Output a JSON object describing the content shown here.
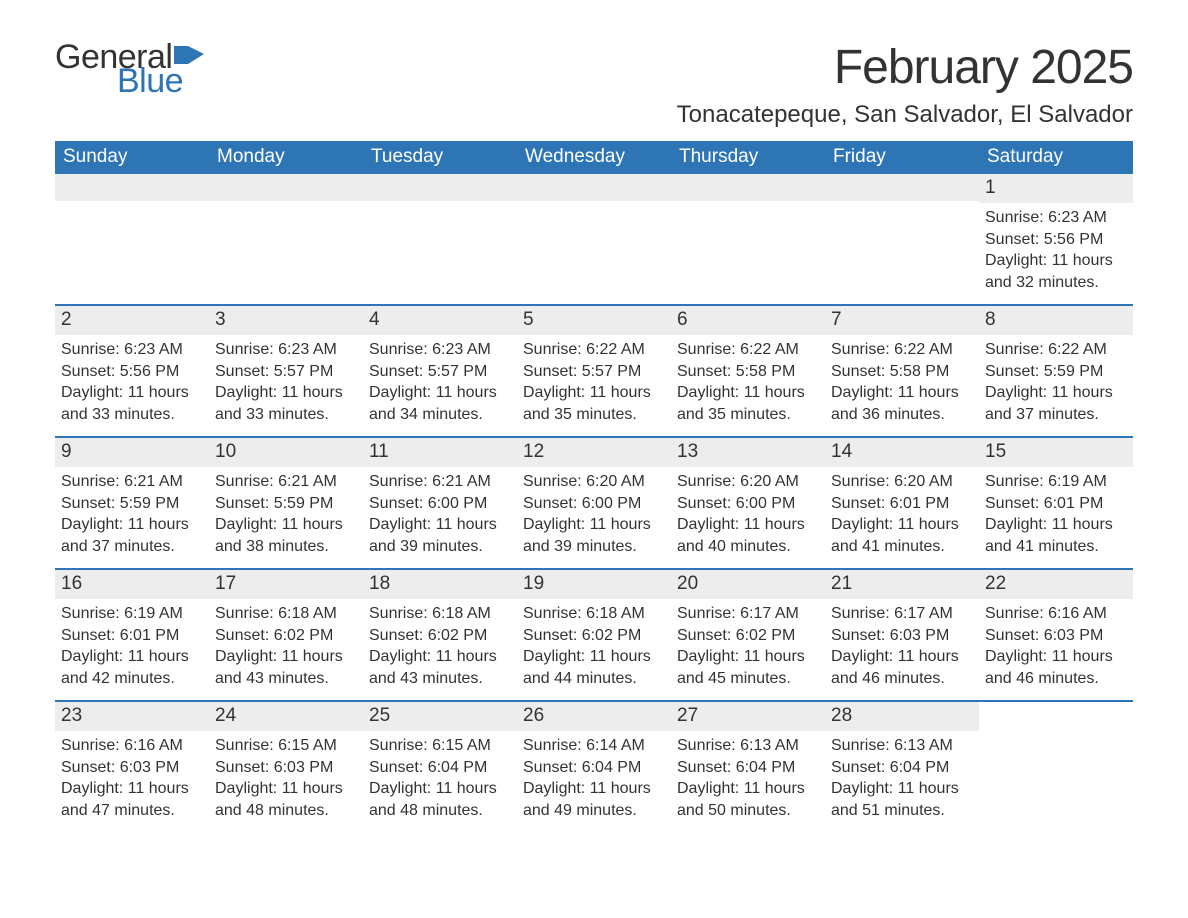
{
  "brand": {
    "word1": "General",
    "word2": "Blue",
    "flag_color": "#2e75b6"
  },
  "colors": {
    "header_bg": "#2e75b6",
    "header_text": "#ffffff",
    "daynum_bg": "#ededed",
    "text": "#333333",
    "rule": "#2e75b6",
    "page_bg": "#ffffff"
  },
  "title": "February 2025",
  "location": "Tonacatepeque, San Salvador, El Salvador",
  "dow": [
    "Sunday",
    "Monday",
    "Tuesday",
    "Wednesday",
    "Thursday",
    "Friday",
    "Saturday"
  ],
  "weeks": [
    [
      {
        "n": "",
        "sunrise": "",
        "sunset": "",
        "daylight": ""
      },
      {
        "n": "",
        "sunrise": "",
        "sunset": "",
        "daylight": ""
      },
      {
        "n": "",
        "sunrise": "",
        "sunset": "",
        "daylight": ""
      },
      {
        "n": "",
        "sunrise": "",
        "sunset": "",
        "daylight": ""
      },
      {
        "n": "",
        "sunrise": "",
        "sunset": "",
        "daylight": ""
      },
      {
        "n": "",
        "sunrise": "",
        "sunset": "",
        "daylight": ""
      },
      {
        "n": "1",
        "sunrise": "Sunrise: 6:23 AM",
        "sunset": "Sunset: 5:56 PM",
        "daylight": "Daylight: 11 hours and 32 minutes."
      }
    ],
    [
      {
        "n": "2",
        "sunrise": "Sunrise: 6:23 AM",
        "sunset": "Sunset: 5:56 PM",
        "daylight": "Daylight: 11 hours and 33 minutes."
      },
      {
        "n": "3",
        "sunrise": "Sunrise: 6:23 AM",
        "sunset": "Sunset: 5:57 PM",
        "daylight": "Daylight: 11 hours and 33 minutes."
      },
      {
        "n": "4",
        "sunrise": "Sunrise: 6:23 AM",
        "sunset": "Sunset: 5:57 PM",
        "daylight": "Daylight: 11 hours and 34 minutes."
      },
      {
        "n": "5",
        "sunrise": "Sunrise: 6:22 AM",
        "sunset": "Sunset: 5:57 PM",
        "daylight": "Daylight: 11 hours and 35 minutes."
      },
      {
        "n": "6",
        "sunrise": "Sunrise: 6:22 AM",
        "sunset": "Sunset: 5:58 PM",
        "daylight": "Daylight: 11 hours and 35 minutes."
      },
      {
        "n": "7",
        "sunrise": "Sunrise: 6:22 AM",
        "sunset": "Sunset: 5:58 PM",
        "daylight": "Daylight: 11 hours and 36 minutes."
      },
      {
        "n": "8",
        "sunrise": "Sunrise: 6:22 AM",
        "sunset": "Sunset: 5:59 PM",
        "daylight": "Daylight: 11 hours and 37 minutes."
      }
    ],
    [
      {
        "n": "9",
        "sunrise": "Sunrise: 6:21 AM",
        "sunset": "Sunset: 5:59 PM",
        "daylight": "Daylight: 11 hours and 37 minutes."
      },
      {
        "n": "10",
        "sunrise": "Sunrise: 6:21 AM",
        "sunset": "Sunset: 5:59 PM",
        "daylight": "Daylight: 11 hours and 38 minutes."
      },
      {
        "n": "11",
        "sunrise": "Sunrise: 6:21 AM",
        "sunset": "Sunset: 6:00 PM",
        "daylight": "Daylight: 11 hours and 39 minutes."
      },
      {
        "n": "12",
        "sunrise": "Sunrise: 6:20 AM",
        "sunset": "Sunset: 6:00 PM",
        "daylight": "Daylight: 11 hours and 39 minutes."
      },
      {
        "n": "13",
        "sunrise": "Sunrise: 6:20 AM",
        "sunset": "Sunset: 6:00 PM",
        "daylight": "Daylight: 11 hours and 40 minutes."
      },
      {
        "n": "14",
        "sunrise": "Sunrise: 6:20 AM",
        "sunset": "Sunset: 6:01 PM",
        "daylight": "Daylight: 11 hours and 41 minutes."
      },
      {
        "n": "15",
        "sunrise": "Sunrise: 6:19 AM",
        "sunset": "Sunset: 6:01 PM",
        "daylight": "Daylight: 11 hours and 41 minutes."
      }
    ],
    [
      {
        "n": "16",
        "sunrise": "Sunrise: 6:19 AM",
        "sunset": "Sunset: 6:01 PM",
        "daylight": "Daylight: 11 hours and 42 minutes."
      },
      {
        "n": "17",
        "sunrise": "Sunrise: 6:18 AM",
        "sunset": "Sunset: 6:02 PM",
        "daylight": "Daylight: 11 hours and 43 minutes."
      },
      {
        "n": "18",
        "sunrise": "Sunrise: 6:18 AM",
        "sunset": "Sunset: 6:02 PM",
        "daylight": "Daylight: 11 hours and 43 minutes."
      },
      {
        "n": "19",
        "sunrise": "Sunrise: 6:18 AM",
        "sunset": "Sunset: 6:02 PM",
        "daylight": "Daylight: 11 hours and 44 minutes."
      },
      {
        "n": "20",
        "sunrise": "Sunrise: 6:17 AM",
        "sunset": "Sunset: 6:02 PM",
        "daylight": "Daylight: 11 hours and 45 minutes."
      },
      {
        "n": "21",
        "sunrise": "Sunrise: 6:17 AM",
        "sunset": "Sunset: 6:03 PM",
        "daylight": "Daylight: 11 hours and 46 minutes."
      },
      {
        "n": "22",
        "sunrise": "Sunrise: 6:16 AM",
        "sunset": "Sunset: 6:03 PM",
        "daylight": "Daylight: 11 hours and 46 minutes."
      }
    ],
    [
      {
        "n": "23",
        "sunrise": "Sunrise: 6:16 AM",
        "sunset": "Sunset: 6:03 PM",
        "daylight": "Daylight: 11 hours and 47 minutes."
      },
      {
        "n": "24",
        "sunrise": "Sunrise: 6:15 AM",
        "sunset": "Sunset: 6:03 PM",
        "daylight": "Daylight: 11 hours and 48 minutes."
      },
      {
        "n": "25",
        "sunrise": "Sunrise: 6:15 AM",
        "sunset": "Sunset: 6:04 PM",
        "daylight": "Daylight: 11 hours and 48 minutes."
      },
      {
        "n": "26",
        "sunrise": "Sunrise: 6:14 AM",
        "sunset": "Sunset: 6:04 PM",
        "daylight": "Daylight: 11 hours and 49 minutes."
      },
      {
        "n": "27",
        "sunrise": "Sunrise: 6:13 AM",
        "sunset": "Sunset: 6:04 PM",
        "daylight": "Daylight: 11 hours and 50 minutes."
      },
      {
        "n": "28",
        "sunrise": "Sunrise: 6:13 AM",
        "sunset": "Sunset: 6:04 PM",
        "daylight": "Daylight: 11 hours and 51 minutes."
      },
      {
        "n": "",
        "sunrise": "",
        "sunset": "",
        "daylight": ""
      }
    ]
  ]
}
